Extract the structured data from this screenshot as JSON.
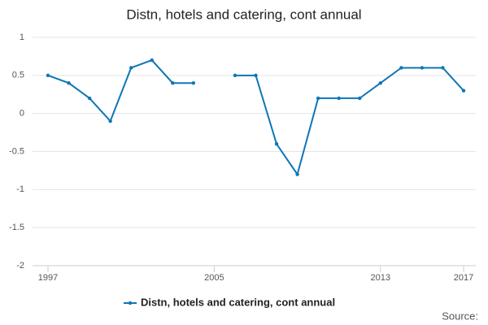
{
  "chart_data": {
    "type": "line",
    "title": "Distn, hotels and catering, cont annual",
    "x": [
      1997,
      1998,
      1999,
      2000,
      2001,
      2002,
      2003,
      2004,
      2005,
      2006,
      2007,
      2008,
      2009,
      2010,
      2011,
      2012,
      2013,
      2014,
      2015,
      2016,
      2017
    ],
    "series": [
      {
        "name": "Distn, hotels and catering, cont annual",
        "color": "#0e76b5",
        "values": [
          0.5,
          0.4,
          0.2,
          -0.1,
          0.6,
          0.7,
          0.4,
          0.4,
          null,
          0.5,
          0.5,
          -0.4,
          -0.8,
          0.2,
          0.2,
          0.2,
          0.4,
          0.6,
          0.6,
          0.6,
          0.3
        ]
      }
    ],
    "xlim": [
      1997,
      2017
    ],
    "xticks": [
      1997,
      2005,
      2013,
      2017
    ],
    "ylim": [
      -2,
      1
    ],
    "yticks": [
      -2,
      -1.5,
      -1,
      -0.5,
      0,
      0.5,
      1
    ],
    "grid": true,
    "legend": "bottom",
    "source": "Source:"
  }
}
